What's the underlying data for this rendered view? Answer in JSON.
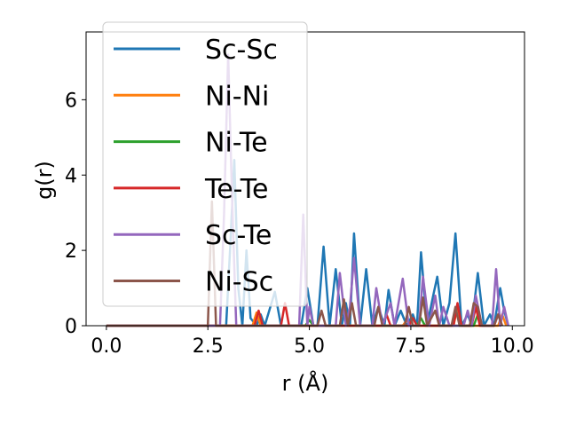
{
  "chart_data": {
    "type": "line",
    "xlabel": "r (Å)",
    "ylabel": "g(r)",
    "xlim": [
      -0.5,
      10.3
    ],
    "ylim": [
      0,
      7.8
    ],
    "xticks": [
      0.0,
      2.5,
      5.0,
      7.5,
      10.0
    ],
    "xtick_labels": [
      "0.0",
      "2.5",
      "5.0",
      "7.5",
      "10.0"
    ],
    "yticks": [
      0,
      2,
      4,
      6
    ],
    "ytick_labels": [
      "0",
      "2",
      "4",
      "6"
    ],
    "grid": false,
    "legend_position": "upper-left",
    "series": [
      {
        "name": "Sc-Sc",
        "color": "#1f77b4",
        "points": [
          [
            0,
            0
          ],
          [
            2.95,
            0
          ],
          [
            3.05,
            2.1
          ],
          [
            3.15,
            4.4
          ],
          [
            3.25,
            1.0
          ],
          [
            3.35,
            0
          ],
          [
            3.45,
            2.0
          ],
          [
            3.55,
            0.2
          ],
          [
            3.7,
            0
          ],
          [
            3.8,
            0.3
          ],
          [
            3.9,
            0
          ],
          [
            4.15,
            0.9
          ],
          [
            4.3,
            0
          ],
          [
            4.8,
            0
          ],
          [
            4.95,
            1.0
          ],
          [
            5.1,
            0
          ],
          [
            5.2,
            0
          ],
          [
            5.35,
            2.1
          ],
          [
            5.5,
            0
          ],
          [
            5.65,
            1.5
          ],
          [
            5.8,
            0
          ],
          [
            5.9,
            0.6
          ],
          [
            6.0,
            0
          ],
          [
            6.1,
            2.45
          ],
          [
            6.25,
            0
          ],
          [
            6.4,
            1.5
          ],
          [
            6.55,
            0
          ],
          [
            6.7,
            0.5
          ],
          [
            6.85,
            0
          ],
          [
            6.95,
            0.95
          ],
          [
            7.1,
            0
          ],
          [
            7.25,
            0.4
          ],
          [
            7.4,
            0
          ],
          [
            7.55,
            0.3
          ],
          [
            7.65,
            0
          ],
          [
            7.75,
            1.95
          ],
          [
            7.9,
            0
          ],
          [
            8.05,
            0.8
          ],
          [
            8.15,
            1.3
          ],
          [
            8.3,
            0
          ],
          [
            8.45,
            0.6
          ],
          [
            8.6,
            2.45
          ],
          [
            8.75,
            0
          ],
          [
            8.9,
            0.3
          ],
          [
            9.0,
            0
          ],
          [
            9.15,
            1.4
          ],
          [
            9.3,
            0
          ],
          [
            9.45,
            0.3
          ],
          [
            9.55,
            0
          ],
          [
            9.7,
            1.0
          ],
          [
            9.8,
            0.4
          ],
          [
            9.9,
            0
          ]
        ]
      },
      {
        "name": "Ni-Ni",
        "color": "#ff7f0e",
        "points": [
          [
            0,
            0
          ],
          [
            3.6,
            0
          ],
          [
            3.7,
            0.35
          ],
          [
            3.8,
            0
          ],
          [
            7.3,
            0
          ],
          [
            7.4,
            0.15
          ],
          [
            7.5,
            0
          ],
          [
            8.55,
            0
          ],
          [
            8.65,
            0.5
          ],
          [
            8.75,
            0
          ],
          [
            9.65,
            0
          ],
          [
            9.75,
            0.3
          ],
          [
            9.85,
            0
          ]
        ]
      },
      {
        "name": "Ni-Te",
        "color": "#2ca02c",
        "points": [
          [
            0,
            0
          ],
          [
            4.9,
            0
          ],
          [
            5.0,
            0.15
          ],
          [
            5.1,
            0
          ],
          [
            7.65,
            0
          ],
          [
            7.75,
            0.2
          ],
          [
            7.85,
            0
          ],
          [
            9.05,
            0
          ],
          [
            9.15,
            0.3
          ],
          [
            9.25,
            0
          ]
        ]
      },
      {
        "name": "Te-Te",
        "color": "#d62728",
        "points": [
          [
            0,
            0
          ],
          [
            3.65,
            0
          ],
          [
            3.75,
            0.4
          ],
          [
            3.85,
            0
          ],
          [
            4.3,
            0
          ],
          [
            4.4,
            0.6
          ],
          [
            4.5,
            0
          ],
          [
            6.8,
            0
          ],
          [
            6.9,
            0.3
          ],
          [
            7.0,
            0
          ],
          [
            7.45,
            0
          ],
          [
            7.55,
            0.2
          ],
          [
            7.65,
            0
          ],
          [
            8.55,
            0
          ],
          [
            8.65,
            0.6
          ],
          [
            8.75,
            0
          ],
          [
            9.0,
            0
          ],
          [
            9.1,
            0.5
          ],
          [
            9.2,
            0
          ],
          [
            9.55,
            0
          ],
          [
            9.65,
            0.3
          ],
          [
            9.75,
            0
          ]
        ]
      },
      {
        "name": "Sc-Te",
        "color": "#9467bd",
        "points": [
          [
            0,
            0
          ],
          [
            2.8,
            0
          ],
          [
            2.9,
            3.0
          ],
          [
            3.0,
            7.2
          ],
          [
            3.1,
            3.2
          ],
          [
            3.2,
            0
          ],
          [
            4.75,
            0
          ],
          [
            4.85,
            2.95
          ],
          [
            4.95,
            0
          ],
          [
            5.0,
            0.5
          ],
          [
            5.1,
            0
          ],
          [
            5.65,
            0
          ],
          [
            5.75,
            1.4
          ],
          [
            5.9,
            0
          ],
          [
            6.0,
            0.5
          ],
          [
            6.1,
            1.8
          ],
          [
            6.25,
            0
          ],
          [
            6.55,
            0
          ],
          [
            6.65,
            1.0
          ],
          [
            6.8,
            0
          ],
          [
            7.0,
            0.6
          ],
          [
            7.1,
            0
          ],
          [
            7.3,
            1.25
          ],
          [
            7.45,
            0
          ],
          [
            7.7,
            0
          ],
          [
            7.8,
            1.3
          ],
          [
            7.95,
            0
          ],
          [
            8.1,
            0.8
          ],
          [
            8.2,
            0
          ],
          [
            8.3,
            0.5
          ],
          [
            8.45,
            0
          ],
          [
            8.8,
            0
          ],
          [
            8.9,
            0.4
          ],
          [
            9.0,
            0
          ],
          [
            9.1,
            0.8
          ],
          [
            9.25,
            0
          ],
          [
            9.5,
            0
          ],
          [
            9.6,
            1.5
          ],
          [
            9.7,
            0
          ],
          [
            9.8,
            0.5
          ],
          [
            9.9,
            0
          ]
        ]
      },
      {
        "name": "Ni-Sc",
        "color": "#8c564b",
        "points": [
          [
            0,
            0
          ],
          [
            2.5,
            0
          ],
          [
            2.6,
            3.3
          ],
          [
            2.7,
            0
          ],
          [
            5.2,
            0
          ],
          [
            5.3,
            0.4
          ],
          [
            5.4,
            0
          ],
          [
            5.75,
            0
          ],
          [
            5.85,
            0.7
          ],
          [
            5.95,
            0
          ],
          [
            6.05,
            0.6
          ],
          [
            6.15,
            0
          ],
          [
            6.6,
            0
          ],
          [
            6.7,
            0.5
          ],
          [
            6.8,
            0
          ],
          [
            7.35,
            0
          ],
          [
            7.45,
            0.5
          ],
          [
            7.55,
            0
          ],
          [
            7.7,
            0
          ],
          [
            7.8,
            0.75
          ],
          [
            7.9,
            0
          ],
          [
            8.1,
            0.4
          ],
          [
            8.2,
            0
          ],
          [
            8.5,
            0
          ],
          [
            8.6,
            0.5
          ],
          [
            8.7,
            0
          ],
          [
            8.95,
            0
          ],
          [
            9.05,
            0.6
          ],
          [
            9.15,
            0.5
          ],
          [
            9.25,
            0
          ],
          [
            9.55,
            0
          ],
          [
            9.65,
            0.3
          ],
          [
            9.75,
            0
          ]
        ]
      }
    ]
  }
}
